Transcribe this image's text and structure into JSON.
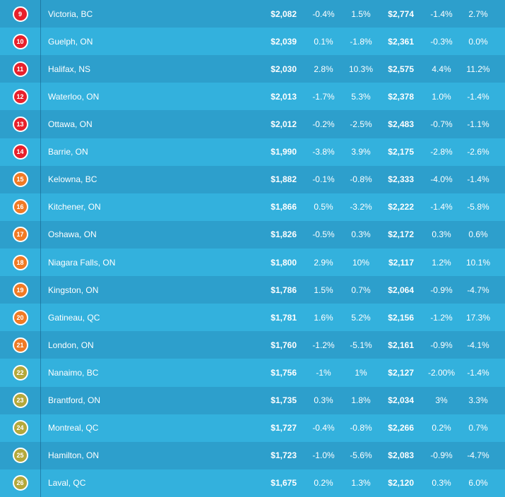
{
  "colors": {
    "rank_red": "#e8202b",
    "rank_orange": "#f07a24",
    "rank_olive": "#b4a83a",
    "row_dark": "#2d9fcc",
    "row_light": "#33b1dd"
  },
  "rows": [
    {
      "rank": "9",
      "city": "Victoria, BC",
      "price1": "$2,082",
      "change1": "-0.4%",
      "change2": "1.5%",
      "price2": "$2,774",
      "change3": "-1.4%",
      "change4": "2.7%",
      "badge": "red"
    },
    {
      "rank": "10",
      "city": "Guelph, ON",
      "price1": "$2,039",
      "change1": "0.1%",
      "change2": "-1.8%",
      "price2": "$2,361",
      "change3": "-0.3%",
      "change4": "0.0%",
      "badge": "red"
    },
    {
      "rank": "11",
      "city": "Halifax, NS",
      "price1": "$2,030",
      "change1": "2.8%",
      "change2": "10.3%",
      "price2": "$2,575",
      "change3": "4.4%",
      "change4": "11.2%",
      "badge": "red"
    },
    {
      "rank": "12",
      "city": "Waterloo, ON",
      "price1": "$2,013",
      "change1": "-1.7%",
      "change2": "5.3%",
      "price2": "$2,378",
      "change3": "1.0%",
      "change4": "-1.4%",
      "badge": "red"
    },
    {
      "rank": "13",
      "city": "Ottawa, ON",
      "price1": "$2,012",
      "change1": "-0.2%",
      "change2": "-2.5%",
      "price2": "$2,483",
      "change3": "-0.7%",
      "change4": "-1.1%",
      "badge": "red"
    },
    {
      "rank": "14",
      "city": "Barrie, ON",
      "price1": "$1,990",
      "change1": "-3.8%",
      "change2": "3.9%",
      "price2": "$2,175",
      "change3": "-2.8%",
      "change4": "-2.6%",
      "badge": "red"
    },
    {
      "rank": "15",
      "city": "Kelowna, BC",
      "price1": "$1,882",
      "change1": "-0.1%",
      "change2": "-0.8%",
      "price2": "$2,333",
      "change3": "-4.0%",
      "change4": "-1.4%",
      "badge": "orange"
    },
    {
      "rank": "16",
      "city": "Kitchener, ON",
      "price1": "$1,866",
      "change1": "0.5%",
      "change2": "-3.2%",
      "price2": "$2,222",
      "change3": "-1.4%",
      "change4": "-5.8%",
      "badge": "orange"
    },
    {
      "rank": "17",
      "city": "Oshawa, ON",
      "price1": "$1,826",
      "change1": "-0.5%",
      "change2": "0.3%",
      "price2": "$2,172",
      "change3": "0.3%",
      "change4": "0.6%",
      "badge": "orange"
    },
    {
      "rank": "18",
      "city": "Niagara Falls, ON",
      "price1": "$1,800",
      "change1": "2.9%",
      "change2": "10%",
      "price2": "$2,117",
      "change3": "1.2%",
      "change4": "10.1%",
      "badge": "orange"
    },
    {
      "rank": "19",
      "city": "Kingston, ON",
      "price1": "$1,786",
      "change1": "1.5%",
      "change2": "0.7%",
      "price2": "$2,064",
      "change3": "-0.9%",
      "change4": "-4.7%",
      "badge": "orange"
    },
    {
      "rank": "20",
      "city": "Gatineau, QC",
      "price1": "$1,781",
      "change1": "1.6%",
      "change2": "5.2%",
      "price2": "$2,156",
      "change3": "-1.2%",
      "change4": "17.3%",
      "badge": "orange"
    },
    {
      "rank": "21",
      "city": "London, ON",
      "price1": "$1,760",
      "change1": "-1.2%",
      "change2": "-5.1%",
      "price2": "$2,161",
      "change3": "-0.9%",
      "change4": "-4.1%",
      "badge": "orange"
    },
    {
      "rank": "22",
      "city": "Nanaimo, BC",
      "price1": "$1,756",
      "change1": "-1%",
      "change2": "1%",
      "price2": "$2,127",
      "change3": "-2.00%",
      "change4": "-1.4%",
      "badge": "olive"
    },
    {
      "rank": "23",
      "city": "Brantford, ON",
      "price1": "$1,735",
      "change1": "0.3%",
      "change2": "1.8%",
      "price2": "$2,034",
      "change3": "3%",
      "change4": "3.3%",
      "badge": "olive"
    },
    {
      "rank": "24",
      "city": "Montreal, QC",
      "price1": "$1,727",
      "change1": "-0.4%",
      "change2": "-0.8%",
      "price2": "$2,266",
      "change3": "0.2%",
      "change4": "0.7%",
      "badge": "olive"
    },
    {
      "rank": "25",
      "city": "Hamilton, ON",
      "price1": "$1,723",
      "change1": "-1.0%",
      "change2": "-5.6%",
      "price2": "$2,083",
      "change3": "-0.9%",
      "change4": "-4.7%",
      "badge": "olive"
    },
    {
      "rank": "26",
      "city": "Laval, QC",
      "price1": "$1,675",
      "change1": "0.2%",
      "change2": "1.3%",
      "price2": "$2,120",
      "change3": "0.3%",
      "change4": "6.0%",
      "badge": "olive"
    }
  ]
}
